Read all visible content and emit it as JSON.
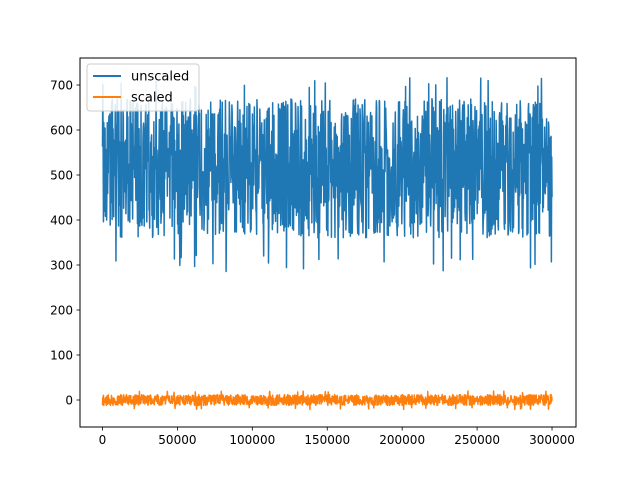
{
  "chart_data": {
    "type": "line",
    "title": "",
    "xlabel": "",
    "ylabel": "",
    "xlim": [
      -15000,
      316000
    ],
    "ylim": [
      -60,
      760
    ],
    "x_ticks": [
      {
        "value": 0,
        "label": "0"
      },
      {
        "value": 50000,
        "label": "50000"
      },
      {
        "value": 100000,
        "label": "100000"
      },
      {
        "value": 150000,
        "label": "150000"
      },
      {
        "value": 200000,
        "label": "200000"
      },
      {
        "value": 250000,
        "label": "250000"
      },
      {
        "value": 300000,
        "label": "300000"
      }
    ],
    "y_ticks": [
      {
        "value": 0,
        "label": "0"
      },
      {
        "value": 100,
        "label": "100"
      },
      {
        "value": 200,
        "label": "200"
      },
      {
        "value": 300,
        "label": "300"
      },
      {
        "value": 400,
        "label": "400"
      },
      {
        "value": 500,
        "label": "500"
      },
      {
        "value": 600,
        "label": "600"
      },
      {
        "value": 700,
        "label": "700"
      }
    ],
    "grid": false,
    "legend": {
      "position": "top-left"
    },
    "series": [
      {
        "name": "unscaled",
        "color": "#1f77b4",
        "x_range": [
          0,
          300000
        ],
        "mean": 512,
        "band": [
          360,
          670
        ],
        "min": 285,
        "max": 718
      },
      {
        "name": "scaled",
        "color": "#ff7f0e",
        "x_range": [
          0,
          300000
        ],
        "mean": 0,
        "band": [
          -12,
          12
        ],
        "min": -22,
        "max": 20
      }
    ]
  }
}
